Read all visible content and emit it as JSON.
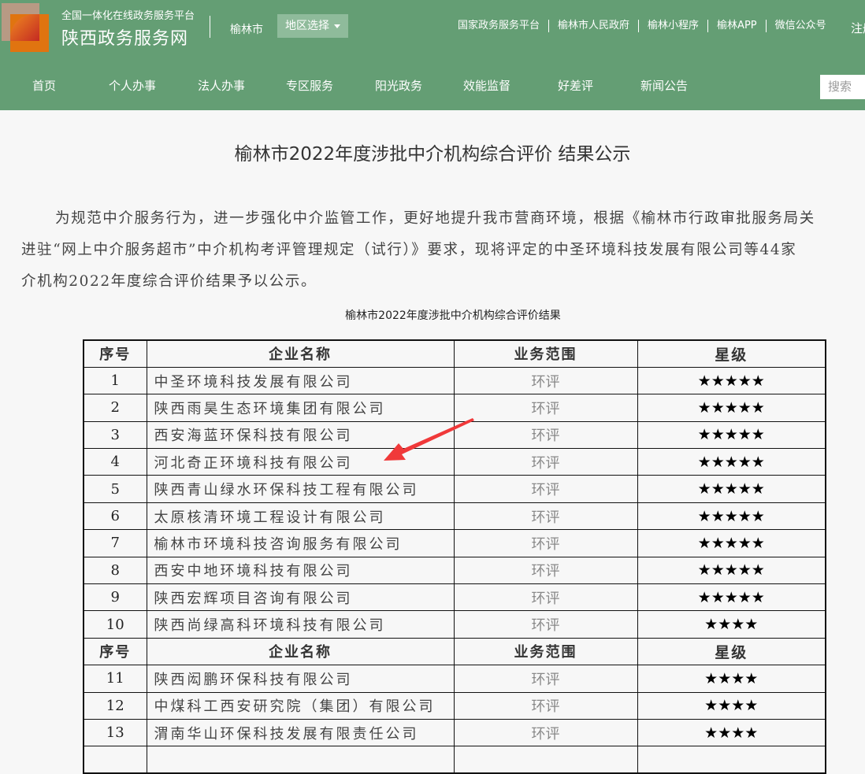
{
  "header": {
    "platform": "全国一体化在线政务服务平台",
    "site_name": "陕西政务服务网",
    "city": "榆林市",
    "region_select": "地区选择",
    "top_links": [
      "国家政务服务平台",
      "榆林市人民政府",
      "榆林小程序",
      "榆林APP",
      "微信公众号"
    ],
    "register": "注册",
    "nav": [
      "首页",
      "个人办事",
      "法人办事",
      "专区服务",
      "阳光政务",
      "效能监督",
      "好差评",
      "新闻公告"
    ],
    "search_placeholder": "搜索"
  },
  "article": {
    "title": "榆林市2022年度涉批中介机构综合评价 结果公示",
    "paragraph_lines": [
      "为规范中介服务行为，进一步强化中介监管工作，更好地提升我市营商环境，根据《榆林市行政审批服务局关",
      "进驻“网上中介服务超市”中介机构考评管理规定（试行）》要求，现将评定的中圣环境科技发展有限公司等44家",
      "介机构2022年度综合评价结果予以公示。"
    ],
    "table_title": "榆林市2022年度涉批中介机构综合评价结果"
  },
  "table": {
    "headers": [
      "序号",
      "企业名称",
      "业务范围",
      "星级"
    ],
    "rows": [
      {
        "no": "1",
        "name": "中圣环境科技发展有限公司",
        "scope": "环评",
        "stars": "★★★★★"
      },
      {
        "no": "2",
        "name": "陕西雨昊生态环境集团有限公司",
        "scope": "环评",
        "stars": "★★★★★"
      },
      {
        "no": "3",
        "name": "西安海蓝环保科技有限公司",
        "scope": "环评",
        "stars": "★★★★★"
      },
      {
        "no": "4",
        "name": "河北奇正环境科技有限公司",
        "scope": "环评",
        "stars": "★★★★★"
      },
      {
        "no": "5",
        "name": "陕西青山绿水环保科技工程有限公司",
        "scope": "环评",
        "stars": "★★★★★"
      },
      {
        "no": "6",
        "name": "太原核清环境工程设计有限公司",
        "scope": "环评",
        "stars": "★★★★★"
      },
      {
        "no": "7",
        "name": "榆林市环境科技咨询服务有限公司",
        "scope": "环评",
        "stars": "★★★★★"
      },
      {
        "no": "8",
        "name": "西安中地环境科技有限公司",
        "scope": "环评",
        "stars": "★★★★★"
      },
      {
        "no": "9",
        "name": "陕西宏辉项目咨询有限公司",
        "scope": "环评",
        "stars": "★★★★★"
      },
      {
        "no": "10",
        "name": "陕西尚绿高科环境科技有限公司",
        "scope": "环评",
        "stars": "★★★★"
      },
      {
        "no": "11",
        "name": "陕西闳鹏环保科技有限公司",
        "scope": "环评",
        "stars": "★★★★"
      },
      {
        "no": "12",
        "name": "中煤科工西安研究院（集团）有限公司",
        "scope": "环评",
        "stars": "★★★★"
      },
      {
        "no": "13",
        "name": "渭南华山环保科技发展有限责任公司",
        "scope": "环评",
        "stars": "★★★★"
      }
    ]
  },
  "colors": {
    "header_bg": "#649e74",
    "arrow": "#f0393a"
  }
}
